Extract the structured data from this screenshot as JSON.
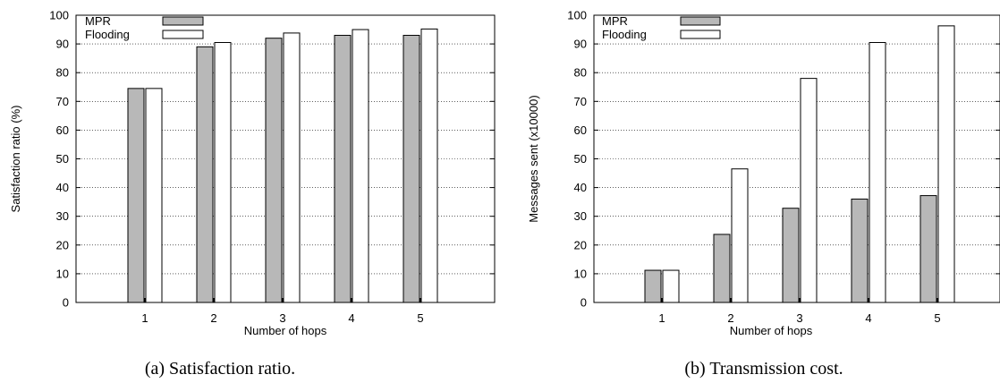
{
  "chart_data": [
    {
      "type": "bar",
      "categories": [
        "1",
        "2",
        "3",
        "4",
        "5"
      ],
      "series": [
        {
          "name": "MPR",
          "values": [
            74.5,
            89,
            92,
            93,
            93
          ]
        },
        {
          "name": "Flooding",
          "values": [
            74.5,
            90.5,
            93.8,
            95,
            95.2
          ]
        }
      ],
      "xlabel": "Number of hops",
      "ylabel": "Satisfaction ratio (%)",
      "ylim": [
        0,
        100
      ],
      "yticks": [
        0,
        10,
        20,
        30,
        40,
        50,
        60,
        70,
        80,
        90,
        100
      ],
      "grid": "horizontal dotted",
      "legend_position": "top-left",
      "caption": "(a) Satisfaction ratio."
    },
    {
      "type": "bar",
      "categories": [
        "1",
        "2",
        "3",
        "4",
        "5"
      ],
      "series": [
        {
          "name": "MPR",
          "values": [
            11.2,
            23.7,
            32.8,
            36,
            37.2
          ]
        },
        {
          "name": "Flooding",
          "values": [
            11.2,
            46.5,
            78,
            90.5,
            96.3
          ]
        }
      ],
      "xlabel": "Number of hops",
      "ylabel": "Messages sent (x10000)",
      "ylim": [
        0,
        100
      ],
      "yticks": [
        0,
        10,
        20,
        30,
        40,
        50,
        60,
        70,
        80,
        90,
        100
      ],
      "grid": "horizontal dotted",
      "legend_position": "top-left",
      "caption": "(b) Transmission cost."
    }
  ],
  "colors": {
    "mpr": "#b8b8b8",
    "flooding": "#ffffff",
    "stroke": "#000000"
  }
}
